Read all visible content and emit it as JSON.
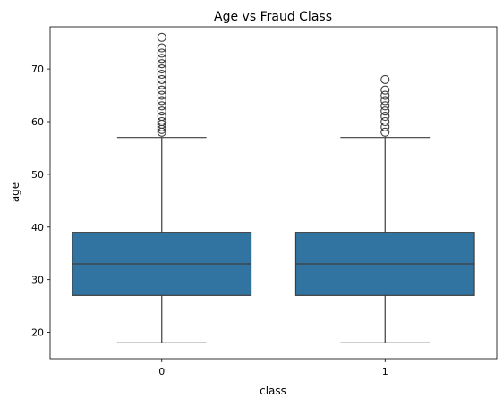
{
  "chart_data": {
    "type": "box",
    "title": "Age vs Fraud Class",
    "xlabel": "class",
    "ylabel": "age",
    "categories": [
      "0",
      "1"
    ],
    "ylim": [
      15,
      78
    ],
    "yticks": [
      20,
      30,
      40,
      50,
      60,
      70
    ],
    "grid": false,
    "color": "#3274a1",
    "boxes": [
      {
        "category": "0",
        "whisker_low": 18,
        "q1": 27,
        "median": 33,
        "q3": 39,
        "whisker_high": 57,
        "outliers": [
          58,
          58.5,
          59,
          59.5,
          60,
          61,
          62,
          63,
          64,
          65,
          66,
          67,
          68,
          69,
          70,
          71,
          72,
          73,
          74,
          76
        ]
      },
      {
        "category": "1",
        "whisker_low": 18,
        "q1": 27,
        "median": 33,
        "q3": 39,
        "whisker_high": 57,
        "outliers": [
          58,
          59,
          60,
          61,
          62,
          63,
          64,
          65,
          66,
          68
        ]
      }
    ]
  }
}
